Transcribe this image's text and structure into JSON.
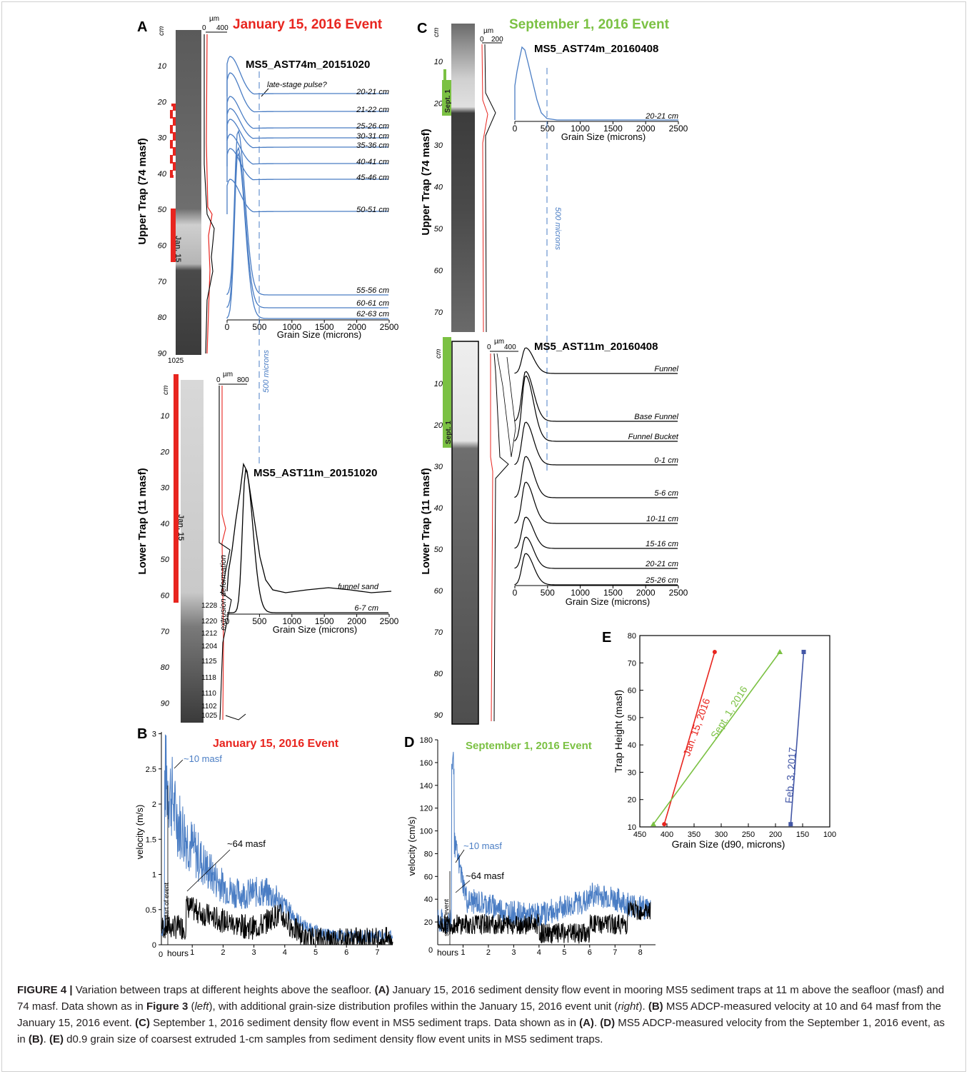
{
  "figure": {
    "panelA": {
      "letter": "A",
      "title": "January 15, 2016 Event",
      "title_color": "#e8251f",
      "upper_axis_label": "Upper Trap (74 masf)",
      "lower_axis_label": "Lower Trap (11 masf)",
      "depth_unit": "cm",
      "upper_depth_ticks": [
        "10",
        "20",
        "30",
        "40",
        "50",
        "60",
        "70",
        "80",
        "90"
      ],
      "lower_depth_ticks": [
        "10",
        "20",
        "30",
        "40",
        "50",
        "60",
        "70",
        "80",
        "90"
      ],
      "upper_scale": {
        "unit": "µm",
        "ticks": [
          "0",
          "400"
        ]
      },
      "lower_scale": {
        "unit": "µm",
        "ticks": [
          "0",
          "800"
        ]
      },
      "upper_bottom_label": "1025",
      "upper_event_label": "Jan. 15",
      "lower_event_label": "Jan. 15",
      "lower_sample_ids": [
        "1228",
        "1220",
        "1212",
        "1204",
        "1125",
        "1118",
        "1110",
        "1102",
        "1025"
      ],
      "extrusion_label": "extrusion deformation",
      "upper_plot": {
        "title": "MS5_AST74m_20151020",
        "annotation": "late-stage pulse?",
        "curves": [
          "20-21 cm",
          "21-22 cm",
          "25-26 cm",
          "30-31 cm",
          "35-36 cm",
          "40-41 cm",
          "45-46 cm",
          "50-51 cm",
          "55-56 cm",
          "60-61 cm",
          "62-63 cm"
        ],
        "x_ticks": [
          "0",
          "500",
          "1000",
          "1500",
          "2000",
          "2500"
        ],
        "x_label": "Grain Size (microns)"
      },
      "marker_500": "500 microns",
      "lower_plot": {
        "title": "MS5_AST11m_20151020",
        "curves": [
          "funnel sand",
          "6-7 cm"
        ],
        "x_ticks": [
          "0",
          "500",
          "1000",
          "1500",
          "2000",
          "2500"
        ],
        "x_label": "Grain Size (microns)"
      }
    },
    "panelB": {
      "letter": "B",
      "title": "January 15, 2016 Event",
      "title_color": "#e8251f",
      "y_label": "velocity (m/s)",
      "y_ticks": [
        "0",
        "0.5",
        "1",
        "1.5",
        "2",
        "2.5",
        "3"
      ],
      "x_ticks": [
        "1",
        "2",
        "3",
        "4",
        "5",
        "6",
        "7"
      ],
      "x_origin": "0",
      "x_label": "hours",
      "start_label": "start of event",
      "series_labels": [
        "~10 masf",
        "~64 masf"
      ],
      "series_colors": [
        "#4a7dc4",
        "#000000"
      ]
    },
    "panelC": {
      "letter": "C",
      "title": "September 1, 2016 Event",
      "title_color": "#7bc143",
      "upper_axis_label": "Upper Trap (74 masf)",
      "lower_axis_label": "Lower Trap (11 masf)",
      "depth_unit": "cm",
      "upper_depth_ticks": [
        "10",
        "20",
        "30",
        "40",
        "50",
        "60",
        "70"
      ],
      "lower_depth_ticks": [
        "10",
        "20",
        "30",
        "40",
        "50",
        "60",
        "70",
        "80",
        "90"
      ],
      "upper_scale": {
        "unit": "µm",
        "ticks": [
          "0",
          "200"
        ]
      },
      "lower_scale": {
        "unit": "µm",
        "ticks": [
          "0",
          "400"
        ]
      },
      "event_label": "Sept. 1",
      "marker_500": "500 microns",
      "upper_plot": {
        "title": "MS5_AST74m_20160408",
        "curves": [
          "20-21 cm"
        ],
        "x_ticks": [
          "0",
          "500",
          "1000",
          "1500",
          "2000",
          "2500"
        ],
        "x_label": "Grain Size (microns)"
      },
      "lower_plot": {
        "title": "MS5_AST11m_20160408",
        "curves": [
          "Funnel",
          "Base Funnel",
          "Funnel Bucket",
          "0-1 cm",
          "5-6 cm",
          "10-11 cm",
          "15-16 cm",
          "20-21 cm",
          "25-26 cm"
        ],
        "x_ticks": [
          "0",
          "500",
          "1000",
          "1500",
          "2000",
          "2500"
        ],
        "x_label": "Grain Size (microns)"
      }
    },
    "panelD": {
      "letter": "D",
      "title": "September 1, 2016 Event",
      "title_color": "#7bc143",
      "y_label": "velocity (cm/s)",
      "y_ticks": [
        "20",
        "40",
        "60",
        "80",
        "100",
        "120",
        "140",
        "160",
        "180"
      ],
      "x_ticks": [
        "1",
        "2",
        "3",
        "4",
        "5",
        "6",
        "7",
        "8"
      ],
      "x_origin": "0",
      "x_label": "hours",
      "start_label": "start of event",
      "series_labels": [
        "~10 masf",
        "~64 masf"
      ]
    },
    "panelE": {
      "letter": "E",
      "y_label": "Trap Height (masf)",
      "x_label": "Grain Size (d90, microns)",
      "y_ticks": [
        "10",
        "20",
        "30",
        "40",
        "50",
        "60",
        "70",
        "80"
      ],
      "x_ticks": [
        "450",
        "400",
        "350",
        "300",
        "250",
        "200",
        "150",
        "100"
      ],
      "series_labels": [
        "Jan. 15, 2016",
        "Sept. 1, 2016",
        "Feb. 3, 2017"
      ]
    }
  },
  "chart_data": [
    {
      "type": "line",
      "panel": "E",
      "xlabel": "Grain Size (d90, microns)",
      "ylabel": "Trap Height (masf)",
      "xlim": [
        450,
        100
      ],
      "ylim": [
        10,
        80
      ],
      "x_reversed": true,
      "series": [
        {
          "name": "Jan. 15, 2016",
          "color": "#e8251f",
          "x": [
            405,
            312
          ],
          "y": [
            11,
            74
          ]
        },
        {
          "name": "Sept. 1, 2016",
          "color": "#7bc143",
          "x": [
            425,
            192
          ],
          "y": [
            11,
            74
          ]
        },
        {
          "name": "Feb. 3, 2017",
          "color": "#4357a6",
          "x": [
            172,
            148
          ],
          "y": [
            11,
            74
          ]
        }
      ]
    }
  ],
  "caption": {
    "label": "FIGURE 4 |",
    "text": " Variation between traps at different heights above the seafloor. ",
    "a_key": "(A)",
    "a_text": " January 15, 2016 sediment density flow event in mooring MS5 sediment traps at 11 m above the seafloor (masf) and 74 masf. Data shown as in ",
    "fig3": "Figure 3",
    "left_open": " (",
    "left": "left",
    "left_close": "), with additional grain-size distribution profiles within the January 15, 2016 event unit (",
    "right": "right",
    "right_close": "). ",
    "b_key": "(B)",
    "b_text": " MS5 ADCP-measured velocity at 10 and 64 masf from the January 15, 2016 event. ",
    "c_key": "(C)",
    "c_text": " September 1, 2016 sediment density flow event in MS5 sediment traps. Data shown as in ",
    "c_ref": "(A)",
    "c_end": ". ",
    "d_key": "(D)",
    "d_text": " MS5 ADCP-measured velocity from the September 1, 2016 event, as in ",
    "d_ref": "(B)",
    "d_end": ". ",
    "e_key": "(E)",
    "e_text": " d0.9 grain size of coarsest extruded 1-cm samples from sediment density flow event units in MS5 sediment traps."
  }
}
